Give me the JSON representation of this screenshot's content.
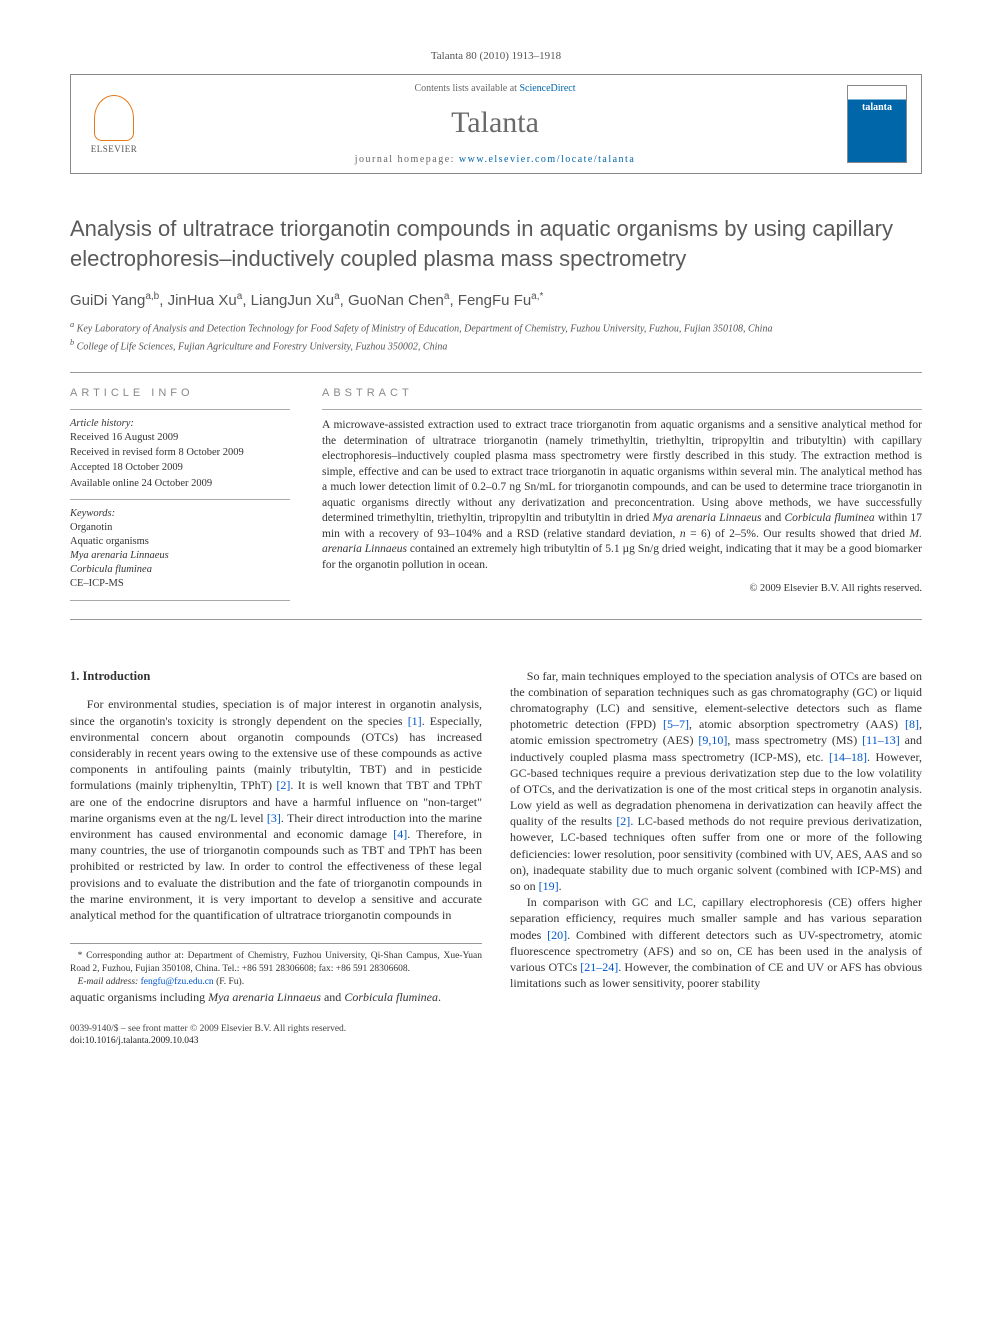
{
  "meta": {
    "citation": "Talanta 80 (2010) 1913–1918"
  },
  "header": {
    "elsevier_label": "ELSEVIER",
    "contents_prefix": "Contents lists available at ",
    "contents_link": "ScienceDirect",
    "journal_title": "Talanta",
    "homepage_prefix": "journal homepage: ",
    "homepage_url": "www.elsevier.com/locate/talanta",
    "cover_text": "talanta"
  },
  "article": {
    "title": "Analysis of ultratrace triorganotin compounds in aquatic organisms by using capillary electrophoresis–inductively coupled plasma mass spectrometry",
    "authors_html": "GuiDi Yang<sup>a,b</sup>, JinHua Xu<sup>a</sup>, LiangJun Xu<sup>a</sup>, GuoNan Chen<sup>a</sup>, FengFu Fu<sup>a,*</sup>",
    "affiliations": [
      "a Key Laboratory of Analysis and Detection Technology for Food Safety of Ministry of Education, Department of Chemistry, Fuzhou University, Fuzhou, Fujian 350108, China",
      "b College of Life Sciences, Fujian Agriculture and Forestry University, Fuzhou 350002, China"
    ]
  },
  "info": {
    "heading": "ARTICLE INFO",
    "history_heading": "Article history:",
    "history": [
      "Received 16 August 2009",
      "Received in revised form 8 October 2009",
      "Accepted 18 October 2009",
      "Available online 24 October 2009"
    ],
    "keywords_heading": "Keywords:",
    "keywords": [
      {
        "text": "Organotin",
        "italic": false
      },
      {
        "text": "Aquatic organisms",
        "italic": false
      },
      {
        "text": "Mya arenaria Linnaeus",
        "italic": true
      },
      {
        "text": "Corbicula fluminea",
        "italic": true
      },
      {
        "text": "CE–ICP-MS",
        "italic": false
      }
    ]
  },
  "abstract": {
    "heading": "ABSTRACT",
    "text": "A microwave-assisted extraction used to extract trace triorganotin from aquatic organisms and a sensitive analytical method for the determination of ultratrace triorganotin (namely trimethyltin, triethyltin, tripropyltin and tributyltin) with capillary electrophoresis–inductively coupled plasma mass spectrometry were firstly described in this study. The extraction method is simple, effective and can be used to extract trace triorganotin in aquatic organisms within several min. The analytical method has a much lower detection limit of 0.2–0.7 ng Sn/mL for triorganotin compounds, and can be used to determine trace triorganotin in aquatic organisms directly without any derivatization and preconcentration. Using above methods, we have successfully determined trimethyltin, triethyltin, tripropyltin and tributyltin in dried <span class=\"italic\">Mya arenaria Linnaeus</span> and <span class=\"italic\">Corbicula fluminea</span> within 17 min with a recovery of 93–104% and a RSD (relative standard deviation, <span class=\"italic\">n</span> = 6) of 2–5%. Our results showed that dried <span class=\"italic\">M. arenaria Linnaeus</span> contained an extremely high tributyltin of 5.1 µg Sn/g dried weight, indicating that it may be a good biomarker for the organotin pollution in ocean.",
    "copyright": "© 2009 Elsevier B.V. All rights reserved."
  },
  "body": {
    "intro_heading": "1. Introduction",
    "p1": "For environmental studies, speciation is of major interest in organotin analysis, since the organotin's toxicity is strongly dependent on the species <span class=\"ref\">[1]</span>. Especially, environmental concern about organotin compounds (OTCs) has increased considerably in recent years owing to the extensive use of these compounds as active components in antifouling paints (mainly tributyltin, TBT) and in pesticide formulations (mainly triphenyltin, TPhT) <span class=\"ref\">[2]</span>. It is well known that TBT and TPhT are one of the endocrine disruptors and have a harmful influence on \"non-target\" marine organisms even at the ng/L level <span class=\"ref\">[3]</span>. Their direct introduction into the marine environment has caused environmental and economic damage <span class=\"ref\">[4]</span>. Therefore, in many countries, the use of triorganotin compounds such as TBT and TPhT has been prohibited or restricted by law. In order to control the effectiveness of these legal provisions and to evaluate the distribution and the fate of triorganotin compounds in the marine environment, it is very important to develop a sensitive and accurate analytical method for the quantification of ultratrace triorganotin compounds in",
    "p1b": "aquatic organisms including <span class=\"italic\">Mya arenaria Linnaeus</span> and <span class=\"italic\">Corbicula fluminea</span>.",
    "p2": "So far, main techniques employed to the speciation analysis of OTCs are based on the combination of separation techniques such as gas chromatography (GC) or liquid chromatography (LC) and sensitive, element-selective detectors such as flame photometric detection (FPD) <span class=\"ref\">[5–7]</span>, atomic absorption spectrometry (AAS) <span class=\"ref\">[8]</span>, atomic emission spectrometry (AES) <span class=\"ref\">[9,10]</span>, mass spectrometry (MS) <span class=\"ref\">[11–13]</span> and inductively coupled plasma mass spectrometry (ICP-MS), etc. <span class=\"ref\">[14–18]</span>. However, GC-based techniques require a previous derivatization step due to the low volatility of OTCs, and the derivatization is one of the most critical steps in organotin analysis. Low yield as well as degradation phenomena in derivatization can heavily affect the quality of the results <span class=\"ref\">[2]</span>. LC-based methods do not require previous derivatization, however, LC-based techniques often suffer from one or more of the following deficiencies: lower resolution, poor sensitivity (combined with UV, AES, AAS and so on), inadequate stability due to much organic solvent (combined with ICP-MS) and so on <span class=\"ref\">[19]</span>.",
    "p3": "In comparison with GC and LC, capillary electrophoresis (CE) offers higher separation efficiency, requires much smaller sample and has various separation modes <span class=\"ref\">[20]</span>. Combined with different detectors such as UV-spectrometry, atomic fluorescence spectrometry (AFS) and so on, CE has been used in the analysis of various OTCs <span class=\"ref\">[21–24]</span>. However, the combination of CE and UV or AFS has obvious limitations such as lower sensitivity, poorer stability"
  },
  "footnote": {
    "corr": "* Corresponding author at: Department of Chemistry, Fuzhou University, Qi-Shan Campus, Xue-Yuan Road 2, Fuzhou, Fujian 350108, China. Tel.: +86 591 28306608; fax: +86 591 28306608.",
    "email_label": "E-mail address:",
    "email": "fengfu@fzu.edu.cn",
    "email_suffix": "(F. Fu)."
  },
  "footer": {
    "line1": "0039-9140/$ – see front matter © 2009 Elsevier B.V. All rights reserved.",
    "doi": "doi:10.1016/j.talanta.2009.10.043"
  },
  "colors": {
    "link": "#0055cc",
    "elsevier_orange": "#e67817",
    "grey_title": "#5a5a5a",
    "cover_blue": "#0066aa"
  }
}
